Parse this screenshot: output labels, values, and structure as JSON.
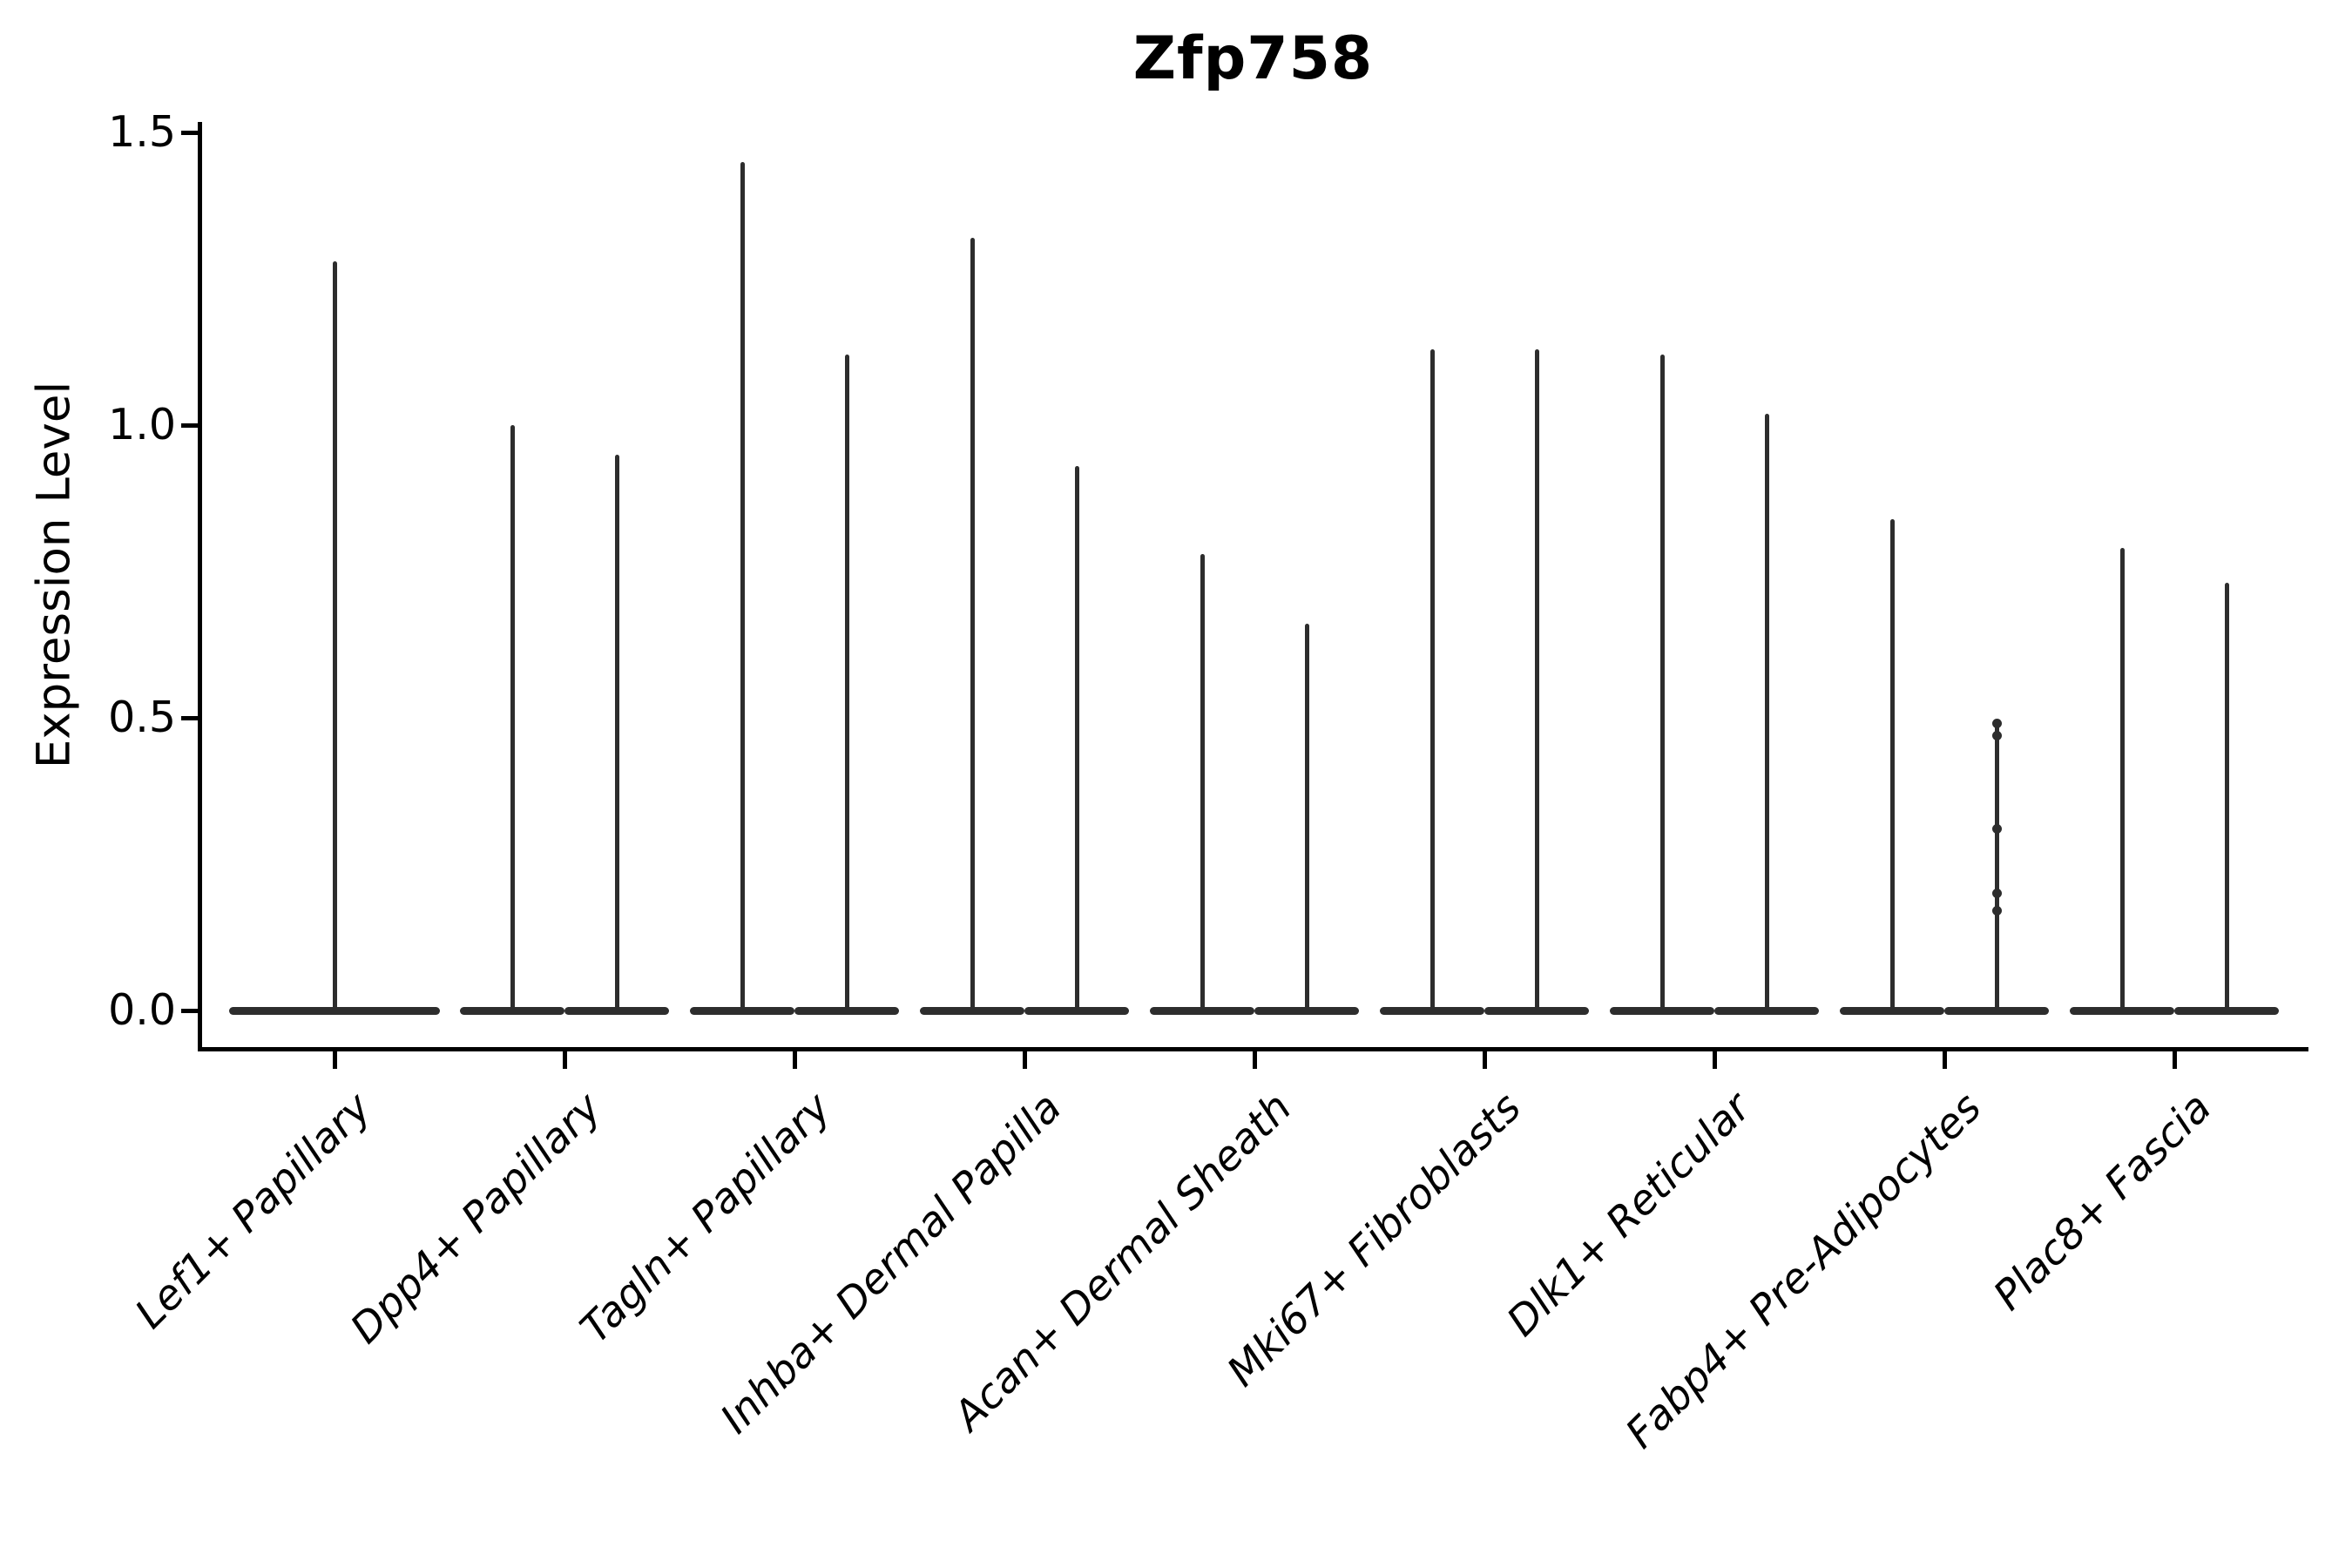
{
  "page": {
    "background": "#ffffff"
  },
  "chart_data": {
    "type": "violin",
    "title": "Zfp758",
    "ylabel": "Expression Level",
    "xlabel": "",
    "ylim": [
      0,
      1.5
    ],
    "yticks": [
      "0.0",
      "0.5",
      "1.0",
      "1.5"
    ],
    "grid": false,
    "legend": null,
    "x_tick_label_rotation_deg": 45,
    "x_tick_label_style": "italic",
    "axis_color": "#000000",
    "violin_color": "#2d2d2d",
    "categories": [
      "Lef1+ Papillary",
      "Dpp4+ Papillary",
      "Tagln+ Papillary",
      "Inhba+ Dermal Papilla",
      "Acan+ Dermal Sheath",
      "Mki67+ Fibroblasts",
      "Dlk1+ Reticular",
      "Fabp4+ Pre-Adipocytes",
      "Plac8+ Fascia"
    ],
    "violins": [
      {
        "category": "Lef1+ Papillary",
        "slot": "center",
        "max_expression": 1.28,
        "points": []
      },
      {
        "category": "Dpp4+ Papillary",
        "slot": "left",
        "max_expression": 1.0,
        "points": []
      },
      {
        "category": "Dpp4+ Papillary",
        "slot": "right",
        "max_expression": 0.95,
        "points": []
      },
      {
        "category": "Tagln+ Papillary",
        "slot": "left",
        "max_expression": 1.45,
        "points": []
      },
      {
        "category": "Tagln+ Papillary",
        "slot": "right",
        "max_expression": 1.12,
        "points": []
      },
      {
        "category": "Inhba+ Dermal Papilla",
        "slot": "left",
        "max_expression": 1.32,
        "points": []
      },
      {
        "category": "Inhba+ Dermal Papilla",
        "slot": "right",
        "max_expression": 0.93,
        "points": []
      },
      {
        "category": "Acan+ Dermal Sheath",
        "slot": "left",
        "max_expression": 0.78,
        "points": []
      },
      {
        "category": "Acan+ Dermal Sheath",
        "slot": "right",
        "max_expression": 0.66,
        "points": []
      },
      {
        "category": "Mki67+ Fibroblasts",
        "slot": "left",
        "max_expression": 1.13,
        "points": []
      },
      {
        "category": "Mki67+ Fibroblasts",
        "slot": "right",
        "max_expression": 1.13,
        "points": []
      },
      {
        "category": "Dlk1+ Reticular",
        "slot": "left",
        "max_expression": 1.12,
        "points": []
      },
      {
        "category": "Dlk1+ Reticular",
        "slot": "right",
        "max_expression": 1.02,
        "points": []
      },
      {
        "category": "Fabp4+ Pre-Adipocytes",
        "slot": "left",
        "max_expression": 0.84,
        "points": []
      },
      {
        "category": "Fabp4+ Pre-Adipocytes",
        "slot": "right",
        "max_expression": 0.49,
        "points": [
          0.49,
          0.47,
          0.31,
          0.2,
          0.17
        ]
      },
      {
        "category": "Plac8+ Fascia",
        "slot": "left",
        "max_expression": 0.79,
        "points": []
      },
      {
        "category": "Plac8+ Fascia",
        "slot": "right",
        "max_expression": 0.73,
        "points": []
      }
    ]
  }
}
